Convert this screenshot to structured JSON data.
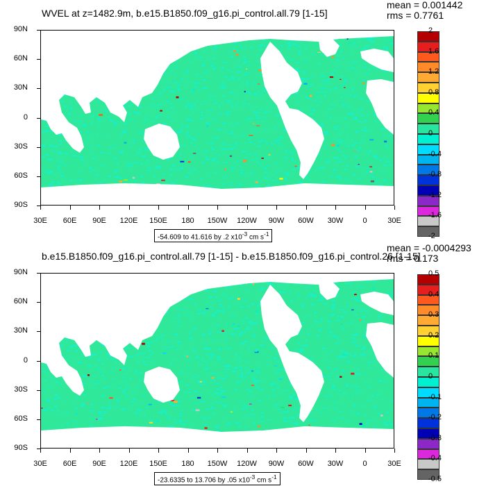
{
  "panels": [
    {
      "title": "WVEL at z=1482.9m, b.e15.B1850.f09_g16.pi_control.all.79 [1-15]",
      "mean": "mean = 0.001442",
      "rms": "rms = 0.7761",
      "lat_labels": [
        "90N",
        "60N",
        "30N",
        "0",
        "30S",
        "60S",
        "90S"
      ],
      "lon_labels": [
        "30E",
        "60E",
        "90E",
        "120E",
        "150E",
        "180",
        "150W",
        "120W",
        "90W",
        "60W",
        "30W",
        "0",
        "30E"
      ],
      "range_text": "-54.609 to 41.616 by .2 x10",
      "range_exp": "-3",
      "range_units": " cm s",
      "range_units_exp": "-1",
      "colorbar_labels": [
        "2",
        "1.6",
        "1.2",
        "0.8",
        "0.4",
        "0",
        "-0.4",
        "-0.8",
        "-1.2",
        "-1.6",
        "-2"
      ]
    },
    {
      "title": "b.e15.B1850.f09_g16.pi_control.all.79 [1-15] - b.e15.B1850.f09_g16.pi_control.26 [1-15]",
      "mean": "mean = -0.0004293",
      "rms": "rms = 0.173",
      "lat_labels": [
        "90N",
        "60N",
        "30N",
        "0",
        "30S",
        "60S",
        "90S"
      ],
      "lon_labels": [
        "30E",
        "60E",
        "90E",
        "120E",
        "150E",
        "180",
        "150W",
        "120W",
        "90W",
        "60W",
        "30W",
        "0",
        "30E"
      ],
      "range_text": "-23.6335 to 13.706 by .05 x10",
      "range_exp": "-3",
      "range_units": " cm s",
      "range_units_exp": "-1",
      "colorbar_labels": [
        "0.5",
        "0.4",
        "0.3",
        "0.2",
        "0.1",
        "0",
        "-0.1",
        "-0.2",
        "-0.3",
        "-0.4",
        "-0.5"
      ]
    }
  ],
  "colorbar_colors": [
    "#b40000",
    "#e61e1e",
    "#ff5a1e",
    "#ff8c28",
    "#ffaa32",
    "#ffd232",
    "#ffff00",
    "#96e632",
    "#32d250",
    "#28e6a0",
    "#00f0d2",
    "#00dcff",
    "#00b4f0",
    "#0078e6",
    "#0032dc",
    "#0000b4",
    "#8c28c8",
    "#dc28dc",
    "#c8c8c8",
    "#646464"
  ],
  "ocean_color": "#2fe89a",
  "ocean_color_alt": "#19f0c8"
}
